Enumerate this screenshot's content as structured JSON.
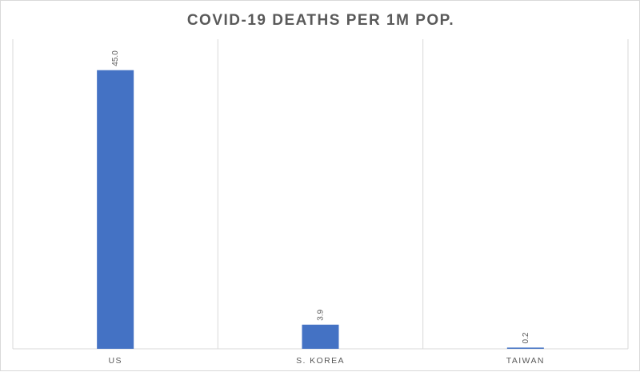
{
  "chart_data": {
    "type": "bar",
    "title": "COVID-19 DEATHS PER 1M POP.",
    "xlabel": "",
    "ylabel": "",
    "categories": [
      "US",
      "S. KOREA",
      "TAIWAN"
    ],
    "values": [
      45.0,
      3.9,
      0.2
    ],
    "data_labels": [
      "45.0",
      "3.9",
      "0.2"
    ],
    "ylim": [
      0,
      50
    ],
    "bar_color": "#4472C4",
    "grid": "vertical category separators",
    "legend": "none"
  }
}
